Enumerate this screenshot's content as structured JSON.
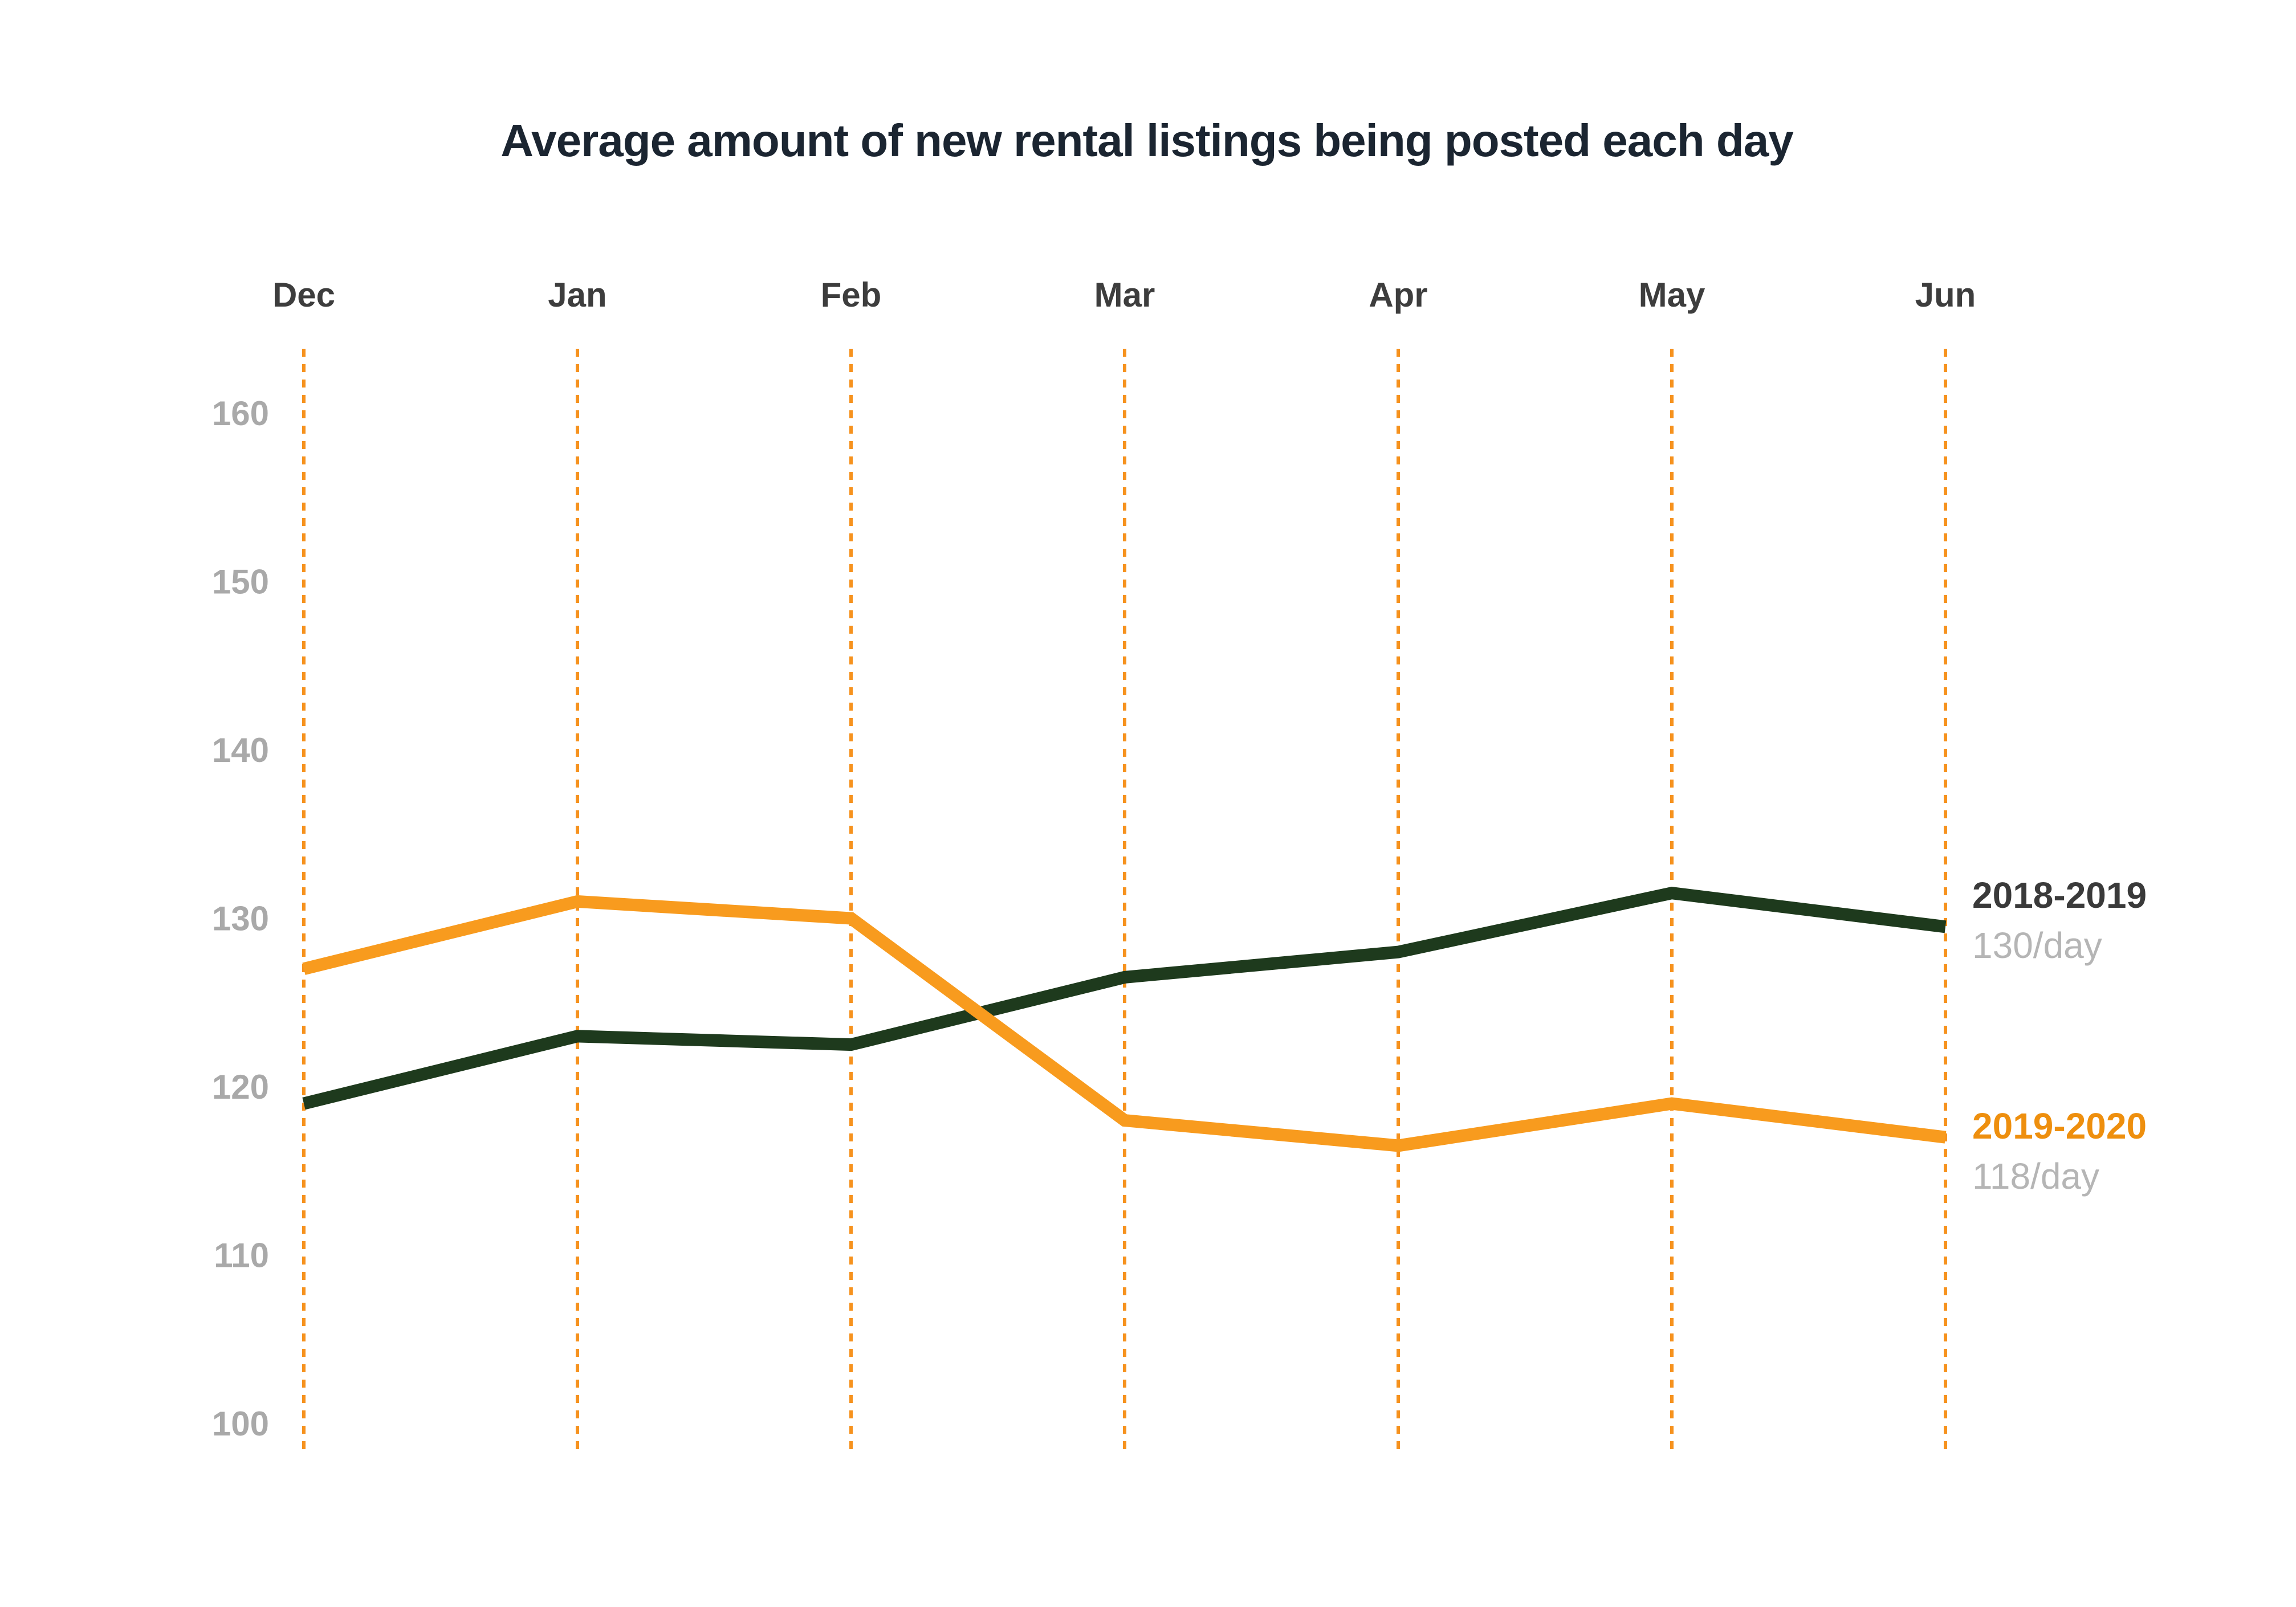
{
  "title": "Average amount of new rental listings being posted each day",
  "chart_data": {
    "type": "line",
    "categories": [
      "Dec",
      "Jan",
      "Feb",
      "Mar",
      "Apr",
      "May",
      "Jun"
    ],
    "x_axis_position": "top",
    "y_ticks": [
      160,
      150,
      140,
      130,
      120,
      110,
      100
    ],
    "ylim": [
      98,
      164
    ],
    "grid": "vertical dashed lines at each month",
    "legend_position": "right of line endpoints",
    "series": [
      {
        "name": "2018-2019",
        "avg_label": "130/day",
        "values": [
          119,
          123,
          122.5,
          126.5,
          128,
          131.5,
          129.5
        ]
      },
      {
        "name": "2019-2020",
        "avg_label": "118/day",
        "values": [
          127,
          131,
          130,
          118,
          116.5,
          119,
          117
        ]
      }
    ]
  },
  "styles": {
    "background": "#ffffff",
    "title_color": "#1b2531",
    "month_label_color": "#3d3d3d",
    "tick_label_color": "#a9a9a9",
    "grid_color": "#f6921e",
    "series_colors": [
      "#1e3a1d",
      "#f89b1e"
    ],
    "legend_name_colors": [
      "#3a3a3a",
      "#ee8f0e"
    ],
    "legend_value_color": "#b5b5b5"
  }
}
